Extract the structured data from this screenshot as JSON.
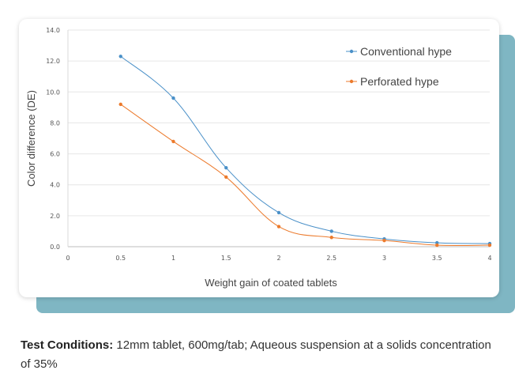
{
  "chart_data": {
    "type": "line",
    "title": "",
    "xlabel": "Weight gain of coated tablets",
    "ylabel": "Color difference (DE)",
    "xlim": [
      0,
      4
    ],
    "ylim": [
      0,
      14
    ],
    "x_ticks": [
      "0",
      "0.5",
      "1",
      "1.5",
      "2",
      "2.5",
      "3",
      "3.5",
      "4"
    ],
    "y_ticks": [
      "0.0",
      "2.0",
      "4.0",
      "6.0",
      "8.0",
      "10.0",
      "12.0",
      "14.0"
    ],
    "grid": "horizontal",
    "legend_position": "top-right",
    "series": [
      {
        "name": "Conventional hype",
        "color": "#4a90c8",
        "x": [
          0.5,
          1,
          1.5,
          2,
          2.5,
          3,
          3.5,
          4
        ],
        "y": [
          12.3,
          9.6,
          5.1,
          2.2,
          1.0,
          0.5,
          0.25,
          0.2
        ]
      },
      {
        "name": "Perforated hype",
        "color": "#ec7a2c",
        "x": [
          0.5,
          1,
          1.5,
          2,
          2.5,
          3,
          3.5,
          4
        ],
        "y": [
          9.2,
          6.8,
          4.5,
          1.3,
          0.6,
          0.4,
          0.1,
          0.1
        ]
      }
    ]
  },
  "caption": {
    "label": "Test Conditions:",
    "text": " 12mm tablet, 600mg/tab; Aqueous suspension at a solids concentration of 35%"
  }
}
